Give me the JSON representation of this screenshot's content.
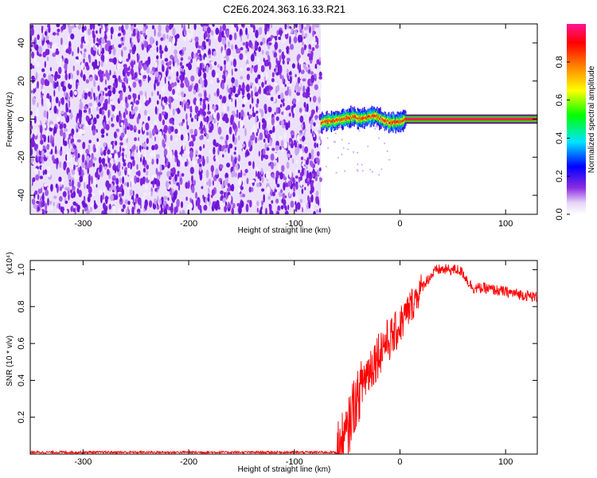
{
  "title": "C2E6.2024.363.16.33.R21",
  "chart_data": [
    {
      "type": "heatmap",
      "xlabel": "Height of straight line (km)",
      "ylabel": "Frequency (Hz)",
      "xlim": [
        -350,
        130
      ],
      "ylim": [
        -50,
        50
      ],
      "xticks": [
        -300,
        -200,
        -100,
        0,
        100
      ],
      "yticks": [
        -40,
        -20,
        0,
        20,
        40
      ],
      "colorbar": {
        "label": "Normalized spectral amplitude",
        "range": [
          0,
          1
        ],
        "ticks": [
          0.0,
          0.2,
          0.4,
          0.6,
          0.8
        ],
        "colors": [
          "#ffffff",
          "#8a2be2",
          "#0000ff",
          "#00e5ff",
          "#00ff00",
          "#ffff00",
          "#ff7f00",
          "#ff0000",
          "#ff1493"
        ]
      },
      "regions": [
        {
          "x_range": [
            -350,
            -75
          ],
          "y_range": [
            -50,
            50
          ],
          "level_range": [
            0.0,
            0.1
          ],
          "description_level": "noise"
        },
        {
          "x_range": [
            -75,
            5
          ],
          "y_center_points": [
            [
              -75,
              -2
            ],
            [
              -65,
              -1
            ],
            [
              -55,
              0
            ],
            [
              -45,
              1
            ],
            [
              -35,
              0
            ],
            [
              -25,
              2
            ],
            [
              -15,
              -1
            ],
            [
              -5,
              -2
            ],
            [
              5,
              0
            ]
          ],
          "y_halfwidth": 3,
          "level_range": [
            0.3,
            1.0
          ]
        },
        {
          "x_range": [
            5,
            130
          ],
          "y_center": 0,
          "y_halfwidth": 2,
          "level_range": [
            0.6,
            1.0
          ]
        }
      ]
    },
    {
      "type": "line",
      "xlabel": "Height of straight line (km)",
      "ylabel": "SNR (10 * v/v)",
      "y_scale_label": "(x10⁴)",
      "xlim": [
        -350,
        130
      ],
      "ylim": [
        0,
        1.05
      ],
      "xticks": [
        -300,
        -200,
        -100,
        0,
        100
      ],
      "yticks": [
        0.2,
        0.4,
        0.6,
        0.8,
        1.0
      ],
      "color": "#ff0000",
      "series": [
        {
          "x": [
            -350,
            -300,
            -250,
            -200,
            -150,
            -100,
            -70,
            -60,
            -50,
            -45,
            -40,
            -35,
            -30,
            -25,
            -20,
            -15,
            -10,
            -5,
            0,
            5,
            10,
            15,
            20,
            25,
            30,
            35,
            40,
            45,
            50,
            55,
            60,
            65,
            70,
            80,
            90,
            100,
            110,
            120,
            130
          ],
          "y": [
            0.01,
            0.01,
            0.01,
            0.01,
            0.01,
            0.01,
            0.01,
            0.01,
            0.1,
            0.25,
            0.3,
            0.4,
            0.45,
            0.5,
            0.55,
            0.6,
            0.62,
            0.65,
            0.7,
            0.75,
            0.8,
            0.85,
            0.9,
            0.94,
            0.97,
            1.0,
            1.0,
            1.0,
            1.0,
            1.0,
            0.98,
            0.93,
            0.9,
            0.9,
            0.89,
            0.88,
            0.87,
            0.86,
            0.85
          ]
        }
      ]
    }
  ]
}
